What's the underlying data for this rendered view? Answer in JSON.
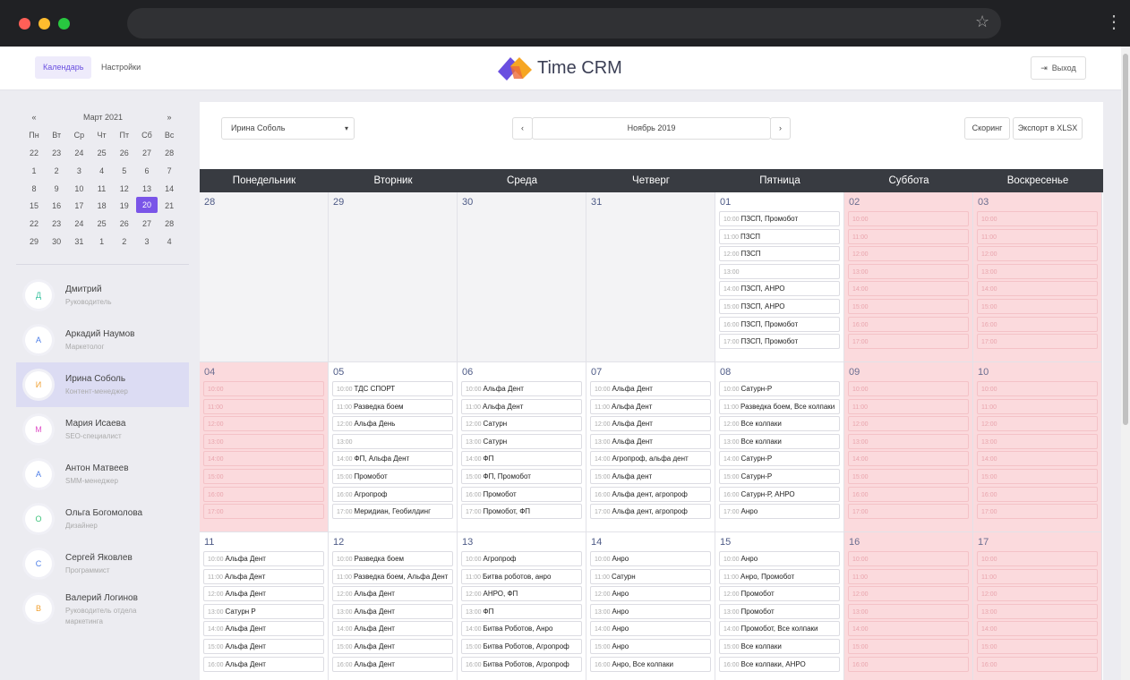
{
  "browser": {
    "star": "☆",
    "menu": "⋮"
  },
  "nav": {
    "tabs": [
      "Календарь",
      "Настройки"
    ],
    "logo": "Time CRM",
    "logout": "Выход"
  },
  "mini_calendar": {
    "prev": "«",
    "month": "Март 2021",
    "next": "»",
    "weekdays": [
      "Пн",
      "Вт",
      "Ср",
      "Чт",
      "Пт",
      "Сб",
      "Вс"
    ],
    "weeks": [
      [
        22,
        23,
        24,
        25,
        26,
        27,
        28
      ],
      [
        1,
        2,
        3,
        4,
        5,
        6,
        7
      ],
      [
        8,
        9,
        10,
        11,
        12,
        13,
        14
      ],
      [
        15,
        16,
        17,
        18,
        19,
        20,
        21
      ],
      [
        22,
        23,
        24,
        25,
        26,
        27,
        28
      ],
      [
        29,
        30,
        31,
        1,
        2,
        3,
        4
      ]
    ],
    "selected_day": 20
  },
  "users": [
    {
      "initial": "Д",
      "name": "Дмитрий",
      "role": "Руководитель",
      "color": "#3cc3a0"
    },
    {
      "initial": "А",
      "name": "Аркадий Наумов",
      "role": "Маркетолог",
      "color": "#4d7ee8"
    },
    {
      "initial": "И",
      "name": "Ирина Соболь",
      "role": "Контент-менеджер",
      "color": "#f0a030",
      "active": true
    },
    {
      "initial": "М",
      "name": "Мария Исаева",
      "role": "SEO-специалист",
      "color": "#e050c8"
    },
    {
      "initial": "А",
      "name": "Антон Матвеев",
      "role": "SMM-менеджер",
      "color": "#4d7ee8"
    },
    {
      "initial": "О",
      "name": "Ольга Богомолова",
      "role": "Дизайнер",
      "color": "#3cc37a"
    },
    {
      "initial": "С",
      "name": "Сергей Яковлев",
      "role": "Программист",
      "color": "#4d7ee8"
    },
    {
      "initial": "В",
      "name": "Валерий Логинов",
      "role": "Руководитель отдела маркетинга",
      "color": "#f0a030"
    }
  ],
  "toolbar": {
    "select": "Ирина Соболь",
    "prev": "‹",
    "month": "Ноябрь 2019",
    "next": "›",
    "buttons": [
      "Скоринг",
      "Экспорт в XLSX"
    ]
  },
  "calendar": {
    "weekdays": [
      "Понедельник",
      "Вторник",
      "Среда",
      "Четверг",
      "Пятница",
      "Суббота",
      "Воскресенье"
    ],
    "weeks": [
      [
        {
          "day": "28",
          "status": "other-month"
        },
        {
          "day": "29",
          "status": "other-month"
        },
        {
          "day": "30",
          "status": "other-month"
        },
        {
          "day": "31",
          "status": "other-month"
        },
        {
          "day": "01",
          "slots": [
            {
              "time": "10:00",
              "text": "ПЗСП, Промобот"
            },
            {
              "time": "11:00",
              "text": "ПЗСП"
            },
            {
              "time": "12:00",
              "text": "ПЗСП"
            },
            {
              "time": "13:00"
            },
            {
              "time": "14:00",
              "text": "ПЗСП, АНРО"
            },
            {
              "time": "15:00",
              "text": "ПЗСП, АНРО"
            },
            {
              "time": "16:00",
              "text": "ПЗСП, Промобот"
            },
            {
              "time": "17:00",
              "text": "ПЗСП, Промобот"
            }
          ]
        },
        {
          "day": "02",
          "status": "day-off",
          "slots": [
            {
              "time": "10:00"
            },
            {
              "time": "11:00"
            },
            {
              "time": "12:00"
            },
            {
              "time": "13:00"
            },
            {
              "time": "14:00"
            },
            {
              "time": "15:00"
            },
            {
              "time": "16:00"
            },
            {
              "time": "17:00"
            }
          ]
        },
        {
          "day": "03",
          "status": "day-off",
          "slots": [
            {
              "time": "10:00"
            },
            {
              "time": "11:00"
            },
            {
              "time": "12:00"
            },
            {
              "time": "13:00"
            },
            {
              "time": "14:00"
            },
            {
              "time": "15:00"
            },
            {
              "time": "16:00"
            },
            {
              "time": "17:00"
            }
          ]
        }
      ],
      [
        {
          "day": "04",
          "status": "day-off",
          "slots": [
            {
              "time": "10:00"
            },
            {
              "time": "11:00"
            },
            {
              "time": "12:00"
            },
            {
              "time": "13:00"
            },
            {
              "time": "14:00"
            },
            {
              "time": "15:00"
            },
            {
              "time": "16:00"
            },
            {
              "time": "17:00"
            }
          ]
        },
        {
          "day": "05",
          "slots": [
            {
              "time": "10:00",
              "text": "ТДС СПОРТ"
            },
            {
              "time": "11:00",
              "text": "Разведка боем"
            },
            {
              "time": "12:00",
              "text": "Альфа День"
            },
            {
              "time": "13:00"
            },
            {
              "time": "14:00",
              "text": "ФП, Альфа Дент"
            },
            {
              "time": "15:00",
              "text": "Промобот"
            },
            {
              "time": "16:00",
              "text": "Агропроф"
            },
            {
              "time": "17:00",
              "text": "Меридиан, Геобилдинг"
            }
          ]
        },
        {
          "day": "06",
          "slots": [
            {
              "time": "10:00",
              "text": "Альфа Дент"
            },
            {
              "time": "11:00",
              "text": "Альфа Дент"
            },
            {
              "time": "12:00",
              "text": "Сатурн"
            },
            {
              "time": "13:00",
              "text": "Сатурн"
            },
            {
              "time": "14:00",
              "text": "ФП"
            },
            {
              "time": "15:00",
              "text": "ФП, Промобот"
            },
            {
              "time": "16:00",
              "text": "Промобот"
            },
            {
              "time": "17:00",
              "text": "Промобот, ФП"
            }
          ]
        },
        {
          "day": "07",
          "slots": [
            {
              "time": "10:00",
              "text": "Альфа Дент"
            },
            {
              "time": "11:00",
              "text": "Альфа Дент"
            },
            {
              "time": "12:00",
              "text": "Альфа Дент"
            },
            {
              "time": "13:00",
              "text": "Альфа Дент"
            },
            {
              "time": "14:00",
              "text": "Агропроф, альфа дент"
            },
            {
              "time": "15:00",
              "text": "Альфа дент"
            },
            {
              "time": "16:00",
              "text": "Альфа дент, агропроф"
            },
            {
              "time": "17:00",
              "text": "Альфа дент, агропроф"
            }
          ]
        },
        {
          "day": "08",
          "slots": [
            {
              "time": "10:00",
              "text": "Сатурн-Р"
            },
            {
              "time": "11:00",
              "text": "Разведка боем, Все колпаки"
            },
            {
              "time": "12:00",
              "text": "Все колпаки"
            },
            {
              "time": "13:00",
              "text": "Все колпаки"
            },
            {
              "time": "14:00",
              "text": "Сатурн-Р"
            },
            {
              "time": "15:00",
              "text": "Сатурн-Р"
            },
            {
              "time": "16:00",
              "text": "Сатурн-Р, АНРО"
            },
            {
              "time": "17:00",
              "text": "Анро"
            }
          ]
        },
        {
          "day": "09",
          "status": "day-off",
          "slots": [
            {
              "time": "10:00"
            },
            {
              "time": "11:00"
            },
            {
              "time": "12:00"
            },
            {
              "time": "13:00"
            },
            {
              "time": "14:00"
            },
            {
              "time": "15:00"
            },
            {
              "time": "16:00"
            },
            {
              "time": "17:00"
            }
          ]
        },
        {
          "day": "10",
          "status": "day-off",
          "slots": [
            {
              "time": "10:00"
            },
            {
              "time": "11:00"
            },
            {
              "time": "12:00"
            },
            {
              "time": "13:00"
            },
            {
              "time": "14:00"
            },
            {
              "time": "15:00"
            },
            {
              "time": "16:00"
            },
            {
              "time": "17:00"
            }
          ]
        }
      ],
      [
        {
          "day": "11",
          "slots": [
            {
              "time": "10:00",
              "text": "Альфа Дент"
            },
            {
              "time": "11:00",
              "text": "Альфа Дент"
            },
            {
              "time": "12:00",
              "text": "Альфа Дент"
            },
            {
              "time": "13:00",
              "text": "Сатурн Р"
            },
            {
              "time": "14:00",
              "text": "Альфа Дент"
            },
            {
              "time": "15:00",
              "text": "Альфа Дент"
            },
            {
              "time": "16:00",
              "text": "Альфа Дент"
            }
          ]
        },
        {
          "day": "12",
          "slots": [
            {
              "time": "10:00",
              "text": "Разведка боем"
            },
            {
              "time": "11:00",
              "text": "Разведка боем, Альфа Дент"
            },
            {
              "time": "12:00",
              "text": "Альфа Дент"
            },
            {
              "time": "13:00",
              "text": "Альфа Дент"
            },
            {
              "time": "14:00",
              "text": "Альфа Дент"
            },
            {
              "time": "15:00",
              "text": "Альфа Дент"
            },
            {
              "time": "16:00",
              "text": "Альфа Дент"
            }
          ]
        },
        {
          "day": "13",
          "slots": [
            {
              "time": "10:00",
              "text": "Агропроф"
            },
            {
              "time": "11:00",
              "text": "Битва роботов, анро"
            },
            {
              "time": "12:00",
              "text": "АНРО, ФП"
            },
            {
              "time": "13:00",
              "text": "ФП"
            },
            {
              "time": "14:00",
              "text": "Битва Роботов, Анро"
            },
            {
              "time": "15:00",
              "text": "Битва Роботов, Агропроф"
            },
            {
              "time": "16:00",
              "text": "Битва Роботов, Агропроф"
            }
          ]
        },
        {
          "day": "14",
          "slots": [
            {
              "time": "10:00",
              "text": "Анро"
            },
            {
              "time": "11:00",
              "text": "Сатурн"
            },
            {
              "time": "12:00",
              "text": "Анро"
            },
            {
              "time": "13:00",
              "text": "Анро"
            },
            {
              "time": "14:00",
              "text": "Анро"
            },
            {
              "time": "15:00",
              "text": "Анро"
            },
            {
              "time": "16:00",
              "text": "Анро, Все колпаки"
            }
          ]
        },
        {
          "day": "15",
          "slots": [
            {
              "time": "10:00",
              "text": "Анро"
            },
            {
              "time": "11:00",
              "text": "Анро, Промобот"
            },
            {
              "time": "12:00",
              "text": "Промобот"
            },
            {
              "time": "13:00",
              "text": "Промобот"
            },
            {
              "time": "14:00",
              "text": "Промобот, Все колпаки"
            },
            {
              "time": "15:00",
              "text": "Все колпаки"
            },
            {
              "time": "16:00",
              "text": "Все колпаки, АНРО"
            }
          ]
        },
        {
          "day": "16",
          "status": "day-off",
          "slots": [
            {
              "time": "10:00"
            },
            {
              "time": "11:00"
            },
            {
              "time": "12:00"
            },
            {
              "time": "13:00"
            },
            {
              "time": "14:00"
            },
            {
              "time": "15:00"
            },
            {
              "time": "16:00"
            }
          ]
        },
        {
          "day": "17",
          "status": "day-off",
          "slots": [
            {
              "time": "10:00"
            },
            {
              "time": "11:00"
            },
            {
              "time": "12:00"
            },
            {
              "time": "13:00"
            },
            {
              "time": "14:00"
            },
            {
              "time": "15:00"
            },
            {
              "time": "16:00"
            }
          ]
        }
      ]
    ]
  }
}
